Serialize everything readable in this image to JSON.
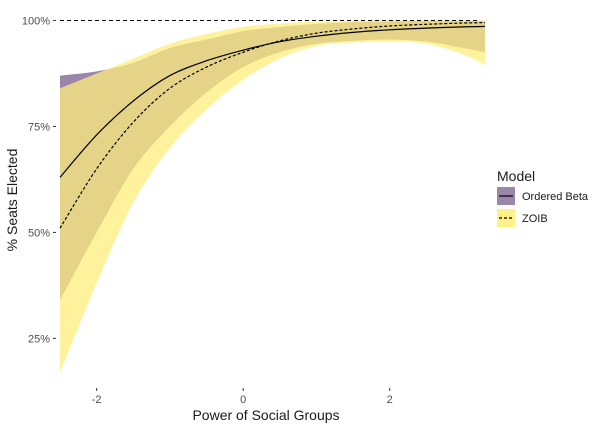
{
  "chart_data": {
    "type": "area",
    "title": "",
    "xlabel": "Power of Social Groups",
    "ylabel": "% Seats Elected",
    "xlim": [
      -2.5,
      3.3
    ],
    "ylim": [
      0.14,
      1.02
    ],
    "x_ticks": [
      -2,
      0,
      2
    ],
    "x_tick_labels": [
      "-2",
      "0",
      "2"
    ],
    "y_ticks": [
      0.25,
      0.5,
      0.75,
      1.0
    ],
    "y_tick_labels": [
      "25%",
      "50%",
      "75%",
      "100%"
    ],
    "reference_line": {
      "y": 1.0,
      "style": "dashed"
    },
    "grid": false,
    "legend": {
      "title": "Model",
      "position": "right",
      "entries": [
        {
          "label": "Ordered Beta",
          "fill": "#7b5c8e",
          "line": "solid"
        },
        {
          "label": "ZOIB",
          "fill": "#fdef7b",
          "line": "dashed"
        }
      ]
    },
    "series": [
      {
        "name": "Ordered Beta",
        "line_style": "solid",
        "fill_color": "#7b5c8e",
        "fill_opacity": 0.75,
        "x": [
          -2.5,
          -2.0,
          -1.5,
          -1.0,
          -0.5,
          0.0,
          0.5,
          1.0,
          1.5,
          2.0,
          2.5,
          3.0,
          3.3
        ],
        "mean": [
          0.63,
          0.73,
          0.81,
          0.87,
          0.905,
          0.93,
          0.95,
          0.963,
          0.972,
          0.978,
          0.982,
          0.985,
          0.986
        ],
        "lower": [
          0.34,
          0.5,
          0.65,
          0.75,
          0.83,
          0.89,
          0.925,
          0.945,
          0.952,
          0.955,
          0.95,
          0.935,
          0.925
        ],
        "upper": [
          0.87,
          0.88,
          0.9,
          0.935,
          0.955,
          0.975,
          0.985,
          0.992,
          0.996,
          0.998,
          0.999,
          0.999,
          0.999
        ]
      },
      {
        "name": "ZOIB",
        "line_style": "dashed",
        "fill_color": "#fdef7b",
        "fill_opacity": 0.75,
        "x": [
          -2.5,
          -2.0,
          -1.5,
          -1.0,
          -0.5,
          0.0,
          0.5,
          1.0,
          1.5,
          2.0,
          2.5,
          3.0,
          3.3
        ],
        "mean": [
          0.51,
          0.65,
          0.76,
          0.84,
          0.89,
          0.925,
          0.952,
          0.97,
          0.98,
          0.987,
          0.991,
          0.994,
          0.995
        ],
        "lower": [
          0.17,
          0.38,
          0.57,
          0.7,
          0.79,
          0.86,
          0.91,
          0.94,
          0.948,
          0.95,
          0.945,
          0.92,
          0.895
        ],
        "upper": [
          0.84,
          0.875,
          0.91,
          0.945,
          0.968,
          0.985,
          0.993,
          0.997,
          0.999,
          1.0,
          1.0,
          1.0,
          1.0
        ]
      }
    ]
  }
}
